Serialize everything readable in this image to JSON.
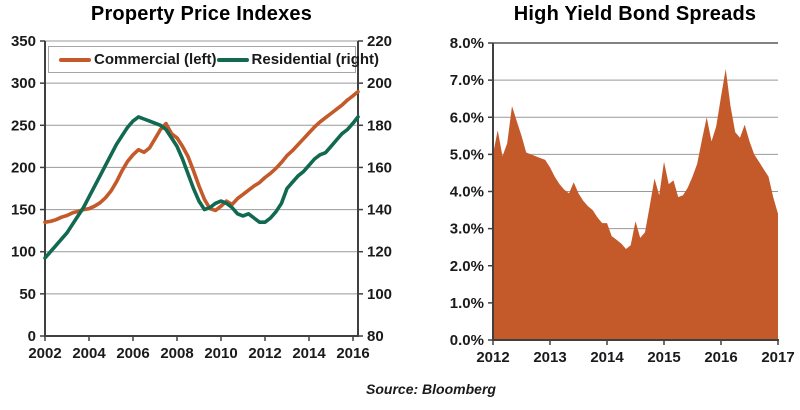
{
  "page": {
    "source_note": "Source: Bloomberg"
  },
  "colors": {
    "commercial": "#C4592A",
    "residential": "#106950",
    "hy_area": "#C4592A",
    "grid": "#999999",
    "axis": "#404040",
    "text": "#1A1A1A",
    "legend_border": "#A6A6A6"
  },
  "chart_data": [
    {
      "type": "line",
      "title": "Property Price Indexes",
      "x_start": 2002,
      "x_step": 0.25,
      "x_ticks": [
        "2002",
        "2004",
        "2006",
        "2008",
        "2010",
        "2012",
        "2014",
        "2016"
      ],
      "x_tick_values": [
        2002,
        2004,
        2006,
        2008,
        2010,
        2012,
        2014,
        2016
      ],
      "left_axis": {
        "min": 0,
        "max": 350,
        "step": 50,
        "tick_labels": [
          "350",
          "300",
          "250",
          "200",
          "150",
          "100",
          "50",
          "0"
        ]
      },
      "right_axis": {
        "min": 80,
        "max": 220,
        "step": 20,
        "tick_labels": [
          "220",
          "200",
          "180",
          "160",
          "140",
          "120",
          "100",
          "80"
        ]
      },
      "legend_position": "top",
      "grid": true,
      "series": [
        {
          "name": "Commercial (left)",
          "axis": "left",
          "color_key": "commercial",
          "values": [
            135,
            136,
            138,
            141,
            143,
            146,
            148,
            150,
            151,
            154,
            158,
            164,
            172,
            183,
            196,
            207,
            215,
            221,
            218,
            223,
            234,
            245,
            252,
            240,
            235,
            225,
            213,
            196,
            178,
            162,
            151,
            149,
            154,
            160,
            156,
            163,
            168,
            173,
            178,
            182,
            188,
            193,
            199,
            206,
            214,
            220,
            227,
            234,
            241,
            248,
            254,
            259,
            264,
            269,
            274,
            280,
            285,
            290
          ]
        },
        {
          "name": "Residential (right)",
          "axis": "right",
          "color_key": "residential",
          "values": [
            117,
            120,
            123,
            126,
            129,
            133,
            137,
            141,
            146,
            151,
            156,
            161,
            166,
            171,
            175,
            179,
            182,
            184,
            183,
            182,
            181,
            180,
            178,
            174,
            170,
            164,
            157,
            150,
            144,
            140,
            141,
            143,
            144,
            143,
            141,
            138,
            137,
            138,
            136,
            134,
            134,
            136,
            139,
            143,
            150,
            153,
            156,
            158,
            161,
            164,
            166,
            167,
            170,
            173,
            176,
            178,
            181,
            184
          ]
        }
      ]
    },
    {
      "type": "area",
      "title": "High Yield Bond Spreads",
      "x_start": 2012,
      "x_step": 0.0833333,
      "x_ticks": [
        "2012",
        "2013",
        "2014",
        "2015",
        "2016",
        "2017"
      ],
      "x_tick_values": [
        2012,
        2013,
        2014,
        2015,
        2016,
        2017
      ],
      "y_axis": {
        "min": 0,
        "max": 8,
        "step": 1,
        "tick_labels": [
          "8.0%",
          "7.0%",
          "6.0%",
          "5.0%",
          "4.0%",
          "3.0%",
          "2.0%",
          "1.0%",
          "0.0%"
        ]
      },
      "grid": true,
      "series_name": "High Yield Bond Spread (%)",
      "values": [
        5.0,
        5.65,
        4.95,
        5.3,
        6.3,
        5.9,
        5.5,
        5.05,
        5.0,
        4.95,
        4.9,
        4.85,
        4.65,
        4.4,
        4.2,
        4.05,
        3.95,
        4.25,
        3.95,
        3.75,
        3.6,
        3.5,
        3.3,
        3.15,
        3.15,
        2.8,
        2.7,
        2.6,
        2.45,
        2.55,
        3.2,
        2.75,
        2.9,
        3.6,
        4.35,
        3.9,
        4.8,
        4.2,
        4.3,
        3.85,
        3.9,
        4.1,
        4.4,
        4.75,
        5.4,
        6.0,
        5.35,
        5.75,
        6.55,
        7.3,
        6.3,
        5.6,
        5.45,
        5.8,
        5.35,
        5.0,
        4.8,
        4.6,
        4.4,
        3.85,
        3.4
      ]
    }
  ]
}
